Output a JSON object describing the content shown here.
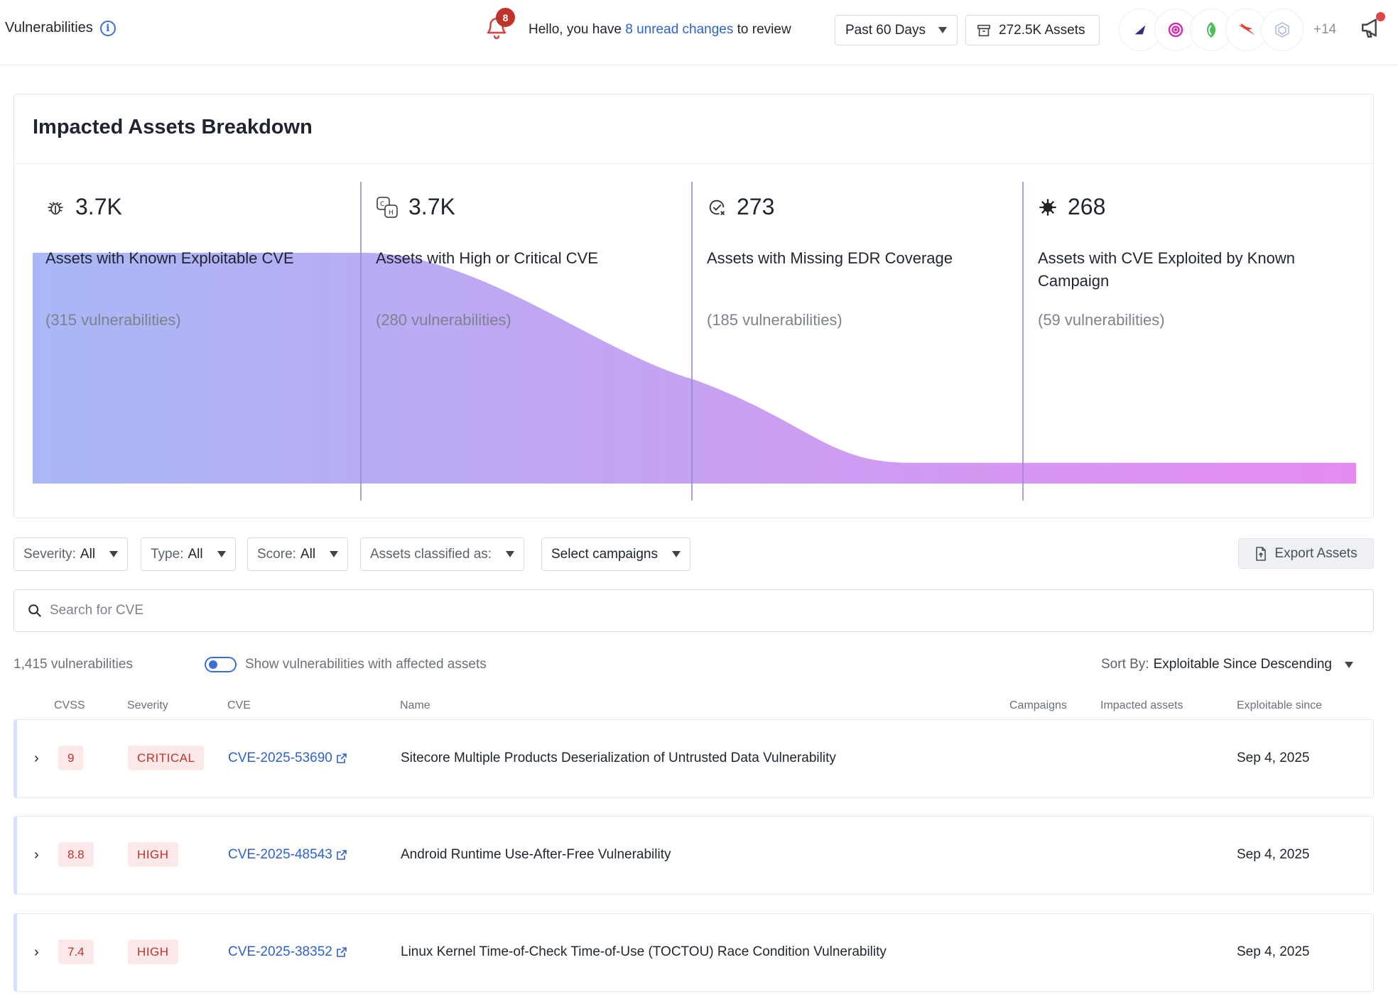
{
  "header": {
    "title": "Vulnerabilities",
    "notifications_count": "8",
    "greeting_prefix": "Hello, you have",
    "greeting_link": "8 unread changes",
    "greeting_suffix": "to review",
    "time_range": "Past 60 Days",
    "assets_label": "272.5K Assets",
    "integrations": [
      "falcon-icon",
      "target-icon",
      "leaf-icon",
      "bird-icon",
      "cube-icon"
    ],
    "integrations_more": "+14"
  },
  "breakdown": {
    "title": "Impacted Assets Breakdown",
    "stats": [
      {
        "icon": "bug-icon",
        "value": "3.7K",
        "label": "Assets with Known Exploitable CVE",
        "sub": "(315 vulnerabilities)"
      },
      {
        "icon": "critical-high-icon",
        "value": "3.7K",
        "label": "Assets with High or Critical CVE",
        "sub": "(280 vulnerabilities)"
      },
      {
        "icon": "edr-missing-icon",
        "value": "273",
        "label": "Assets with Missing EDR Coverage",
        "sub": "(185 vulnerabilities)"
      },
      {
        "icon": "virus-icon",
        "value": "268",
        "label": "Assets with CVE Exploited by Known Campaign",
        "sub": "(59 vulnerabilities)"
      }
    ],
    "funnel_levels": [
      1.0,
      1.0,
      0.45,
      0.09,
      0.09
    ],
    "gradient_start": "#a9b8f5",
    "gradient_end": "#e58bf0"
  },
  "filters": {
    "severity_label": "Severity:",
    "severity_value": "All",
    "type_label": "Type:",
    "type_value": "All",
    "score_label": "Score:",
    "score_value": "All",
    "classified_label": "Assets classified as:",
    "campaigns_label": "Select campaigns",
    "export_label": "Export Assets"
  },
  "search": {
    "placeholder": "Search for CVE"
  },
  "list": {
    "count": "1,415 vulnerabilities",
    "toggle_label": "Show vulnerabilities with affected assets",
    "sort_label": "Sort By:",
    "sort_value": "Exploitable Since Descending"
  },
  "table": {
    "headers": {
      "cvss": "CVSS",
      "severity": "Severity",
      "cve": "CVE",
      "name": "Name",
      "campaigns": "Campaigns",
      "impacted": "Impacted assets",
      "exploitable": "Exploitable since"
    },
    "rows": [
      {
        "cvss": "9",
        "severity": "CRITICAL",
        "cve": "CVE-2025-53690",
        "name": "Sitecore Multiple Products Deserialization of Untrusted Data Vulnerability",
        "date": "Sep 4, 2025"
      },
      {
        "cvss": "8.8",
        "severity": "HIGH",
        "cve": "CVE-2025-48543",
        "name": "Android Runtime Use-After-Free Vulnerability",
        "date": "Sep 4, 2025"
      },
      {
        "cvss": "7.4",
        "severity": "HIGH",
        "cve": "CVE-2025-38352",
        "name": "Linux Kernel Time-of-Check Time-of-Use (TOCTOU) Race Condition Vulnerability",
        "date": "Sep 4, 2025"
      }
    ]
  }
}
